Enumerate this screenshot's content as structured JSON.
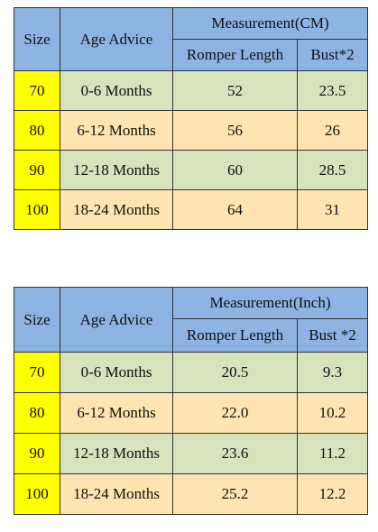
{
  "colors": {
    "header": "#8db3e2",
    "size_cell": "#ffff00",
    "row_green": "#d6e3bc",
    "row_peach": "#fde4b0"
  },
  "cm_table": {
    "size_header": "Size",
    "age_header": "Age Advice",
    "measurement_header": "Measurement(CM)",
    "length_header": "Romper Length",
    "bust_header": "Bust*2",
    "rows": [
      {
        "size": "70",
        "age": "0-6 Months",
        "length": "52",
        "bust": "23.5"
      },
      {
        "size": "80",
        "age": "6-12 Months",
        "length": "56",
        "bust": "26"
      },
      {
        "size": "90",
        "age": "12-18 Months",
        "length": "60",
        "bust": "28.5"
      },
      {
        "size": "100",
        "age": "18-24 Months",
        "length": "64",
        "bust": "31"
      }
    ]
  },
  "inch_table": {
    "size_header": "Size",
    "age_header": "Age Advice",
    "measurement_header": "Measurement(Inch)",
    "length_header": "Romper Length",
    "bust_header": "Bust *2",
    "rows": [
      {
        "size": "70",
        "age": "0-6 Months",
        "length": "20.5",
        "bust": "9.3"
      },
      {
        "size": "80",
        "age": "6-12 Months",
        "length": "22.0",
        "bust": "10.2"
      },
      {
        "size": "90",
        "age": "12-18 Months",
        "length": "23.6",
        "bust": "11.2"
      },
      {
        "size": "100",
        "age": "18-24 Months",
        "length": "25.2",
        "bust": "12.2"
      }
    ]
  }
}
